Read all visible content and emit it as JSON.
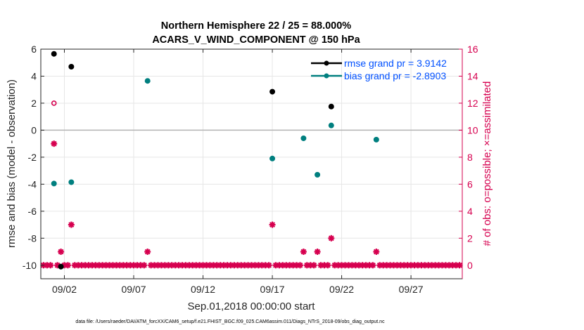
{
  "chart_data": {
    "type": "scatter",
    "title": "Northern Hemisphere 22 / 25 = 88.000%",
    "subtitle": "ACARS_V_WIND_COMPONENT @ 150 hPa",
    "xlabel": "Sep.01,2018 00:00:00 start",
    "ylabel": "rmse and bias (model - observation)",
    "y2label": "# of obs: o=possible; ×=assimilated",
    "footnote": "data file: /Users/raeder/DAI/ATM_forcXX/CAM6_setup/f.e21.FHIST_BGC.f09_025.CAM6assim.011/Diags_NTrS_2018-09/obs_diag_output.nc",
    "xlim": [
      0.3,
      30.7
    ],
    "ylim": [
      -11,
      6
    ],
    "y2lim": [
      -1,
      16
    ],
    "x_ticks": [
      {
        "x": 2,
        "label": "09/02"
      },
      {
        "x": 7,
        "label": "09/07"
      },
      {
        "x": 12,
        "label": "09/12"
      },
      {
        "x": 17,
        "label": "09/17"
      },
      {
        "x": 22,
        "label": "09/22"
      },
      {
        "x": 27,
        "label": "09/27"
      }
    ],
    "y_ticks": [
      {
        "y": 6,
        "label": "6"
      },
      {
        "y": 4,
        "label": "4"
      },
      {
        "y": 2,
        "label": "2"
      },
      {
        "y": 0,
        "label": "0"
      },
      {
        "y": -2,
        "label": "-2"
      },
      {
        "y": -4,
        "label": "-4"
      },
      {
        "y": -6,
        "label": "-6"
      },
      {
        "y": -8,
        "label": "-8"
      },
      {
        "y": -10,
        "label": "-10"
      }
    ],
    "y2_ticks": [
      {
        "y": 16,
        "label": "16"
      },
      {
        "y": 14,
        "label": "14"
      },
      {
        "y": 12,
        "label": "12"
      },
      {
        "y": 10,
        "label": "10"
      },
      {
        "y": 8,
        "label": "8"
      },
      {
        "y": 6,
        "label": "6"
      },
      {
        "y": 4,
        "label": "4"
      },
      {
        "y": 2,
        "label": "2"
      },
      {
        "y": 0,
        "label": "0"
      }
    ],
    "grid": true,
    "zero_line": 0,
    "legend_position": "top-right",
    "colors": {
      "rmse": "#000000",
      "bias": "#007f7f",
      "obs": "#d6004f",
      "legend_text": "#0050ff",
      "zero_line": "#b3b3b3",
      "grid": "#e6e6e6"
    },
    "series": [
      {
        "name": "rmse grand pr = 3.9142",
        "axis": "left",
        "marker": "dot",
        "points": [
          {
            "x": 1.25,
            "y": 5.65
          },
          {
            "x": 1.75,
            "y": -10.1
          },
          {
            "x": 2.5,
            "y": 4.7
          },
          {
            "x": 17.0,
            "y": 2.85
          },
          {
            "x": 21.25,
            "y": 1.75
          }
        ]
      },
      {
        "name": "bias grand pr = -2.8903",
        "axis": "left",
        "marker": "dot",
        "points": [
          {
            "x": 1.25,
            "y": -3.95
          },
          {
            "x": 1.75,
            "y": -10.1
          },
          {
            "x": 2.5,
            "y": -3.85
          },
          {
            "x": 8.0,
            "y": 3.65
          },
          {
            "x": 17.0,
            "y": -2.1
          },
          {
            "x": 19.25,
            "y": -0.6
          },
          {
            "x": 20.25,
            "y": -3.3
          },
          {
            "x": 21.25,
            "y": 0.35
          },
          {
            "x": 24.5,
            "y": -0.7
          }
        ]
      },
      {
        "name": "obs possible",
        "axis": "right",
        "marker": "circle",
        "points": [
          {
            "x": 1.25,
            "y": 12
          }
        ]
      },
      {
        "name": "obs assimilated",
        "axis": "right",
        "marker": "star",
        "nonzero_points": [
          {
            "x": 1.25,
            "y": 9
          },
          {
            "x": 1.75,
            "y": 1
          },
          {
            "x": 2.5,
            "y": 3
          },
          {
            "x": 8.0,
            "y": 1
          },
          {
            "x": 17.0,
            "y": 3
          },
          {
            "x": 19.25,
            "y": 1
          },
          {
            "x": 20.25,
            "y": 1
          },
          {
            "x": 21.25,
            "y": 2
          },
          {
            "x": 24.5,
            "y": 1
          }
        ],
        "zero_x_start": 0.5,
        "zero_x_end": 30.5,
        "zero_x_step": 0.25,
        "zero_value": 0
      }
    ]
  }
}
